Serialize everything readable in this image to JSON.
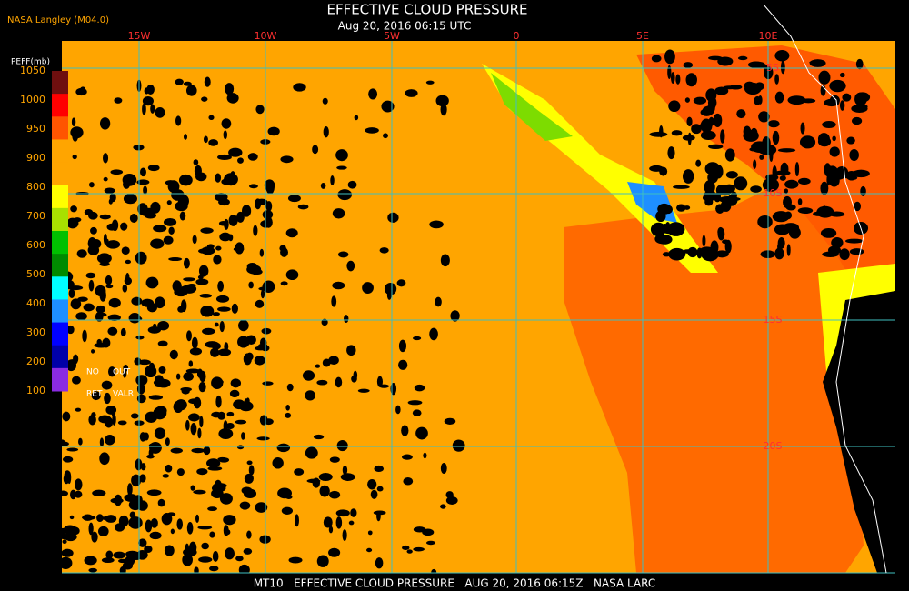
{
  "header": {
    "source": "NASA Langley (M04.0)",
    "title": "EFFECTIVE CLOUD PRESSURE",
    "subtitle": "Aug 20, 2016 06:15 UTC"
  },
  "legend": {
    "label": "PEFF(mb)",
    "levels": [
      "1050",
      "1000",
      "950",
      "900",
      "800",
      "700",
      "600",
      "500",
      "400",
      "300",
      "200",
      "100"
    ],
    "colors": [
      "#6e0f0f",
      "#ff0000",
      "#ff5500",
      "#ffa500",
      "#ffa500",
      "#ffff00",
      "#a8e000",
      "#00c000",
      "#008a00",
      "#00ffff",
      "#1e8fff",
      "#0000ff",
      "#0000a8",
      "#8a2be2"
    ],
    "notes": [
      "NO",
      "OUT",
      "RET",
      "VALR"
    ]
  },
  "map": {
    "longitudes": [
      "15W",
      "10W",
      "5W",
      "0",
      "5E",
      "10E"
    ],
    "latitudes": [
      "5S",
      "10S",
      "15S",
      "20S"
    ]
  },
  "footer": "MT10   EFFECTIVE CLOUD PRESSURE   AUG 20, 2016 06:15Z   NASA LARC"
}
